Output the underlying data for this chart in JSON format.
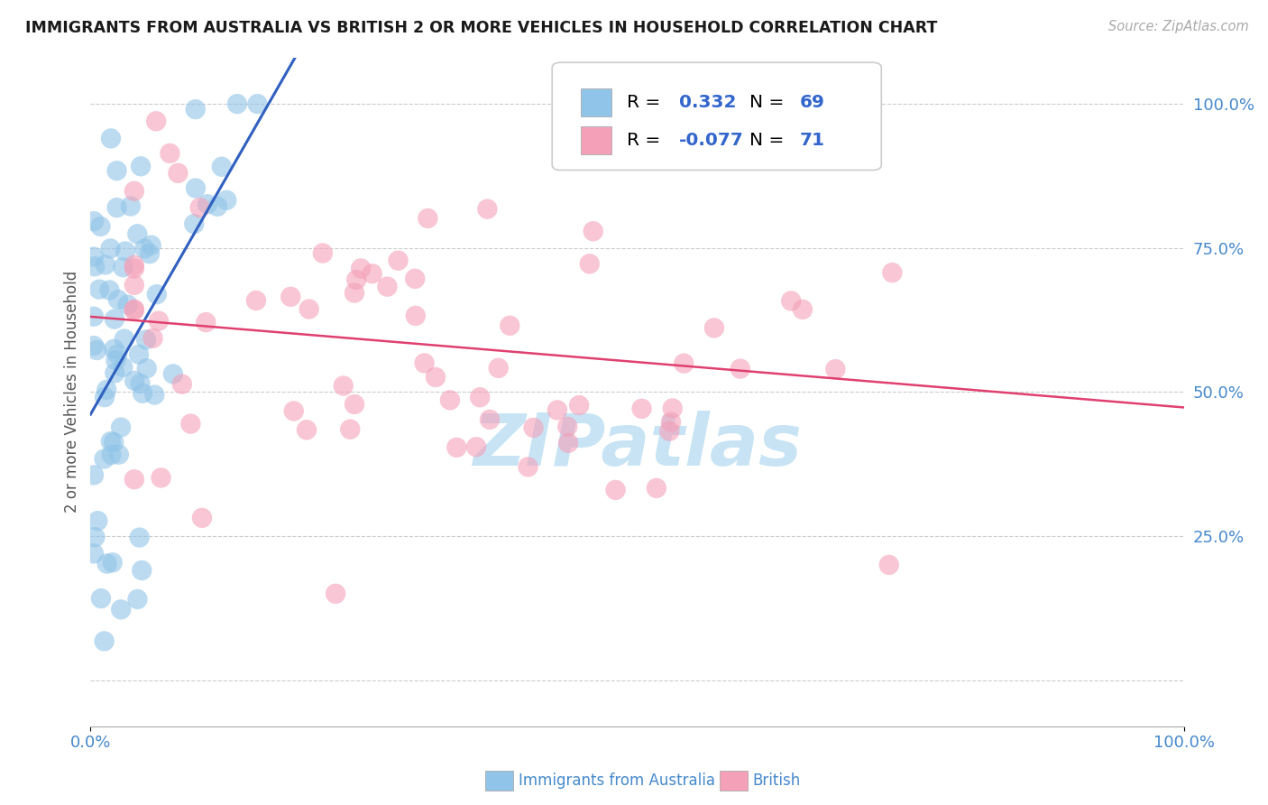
{
  "title": "IMMIGRANTS FROM AUSTRALIA VS BRITISH 2 OR MORE VEHICLES IN HOUSEHOLD CORRELATION CHART",
  "source": "Source: ZipAtlas.com",
  "ylabel": "2 or more Vehicles in Household",
  "xlim": [
    0.0,
    1.0
  ],
  "ylim": [
    -0.08,
    1.08
  ],
  "ytick_vals": [
    0.0,
    0.25,
    0.5,
    0.75,
    1.0
  ],
  "ytick_labels": [
    "",
    "25.0%",
    "50.0%",
    "75.0%",
    "100.0%"
  ],
  "xtick_vals": [
    0.0,
    1.0
  ],
  "xtick_labels": [
    "0.0%",
    "100.0%"
  ],
  "blue_R": 0.332,
  "blue_N": 69,
  "pink_R": -0.077,
  "pink_N": 71,
  "blue_color": "#90c4e8",
  "pink_color": "#f4a0b8",
  "blue_line_color": "#3060c0",
  "pink_line_color": "#e04070",
  "tick_color": "#4488cc",
  "background_color": "#ffffff",
  "grid_color": "#cccccc",
  "watermark_color": "#c8e4f4",
  "legend_edge_color": "#cccccc",
  "source_color": "#aaaaaa"
}
